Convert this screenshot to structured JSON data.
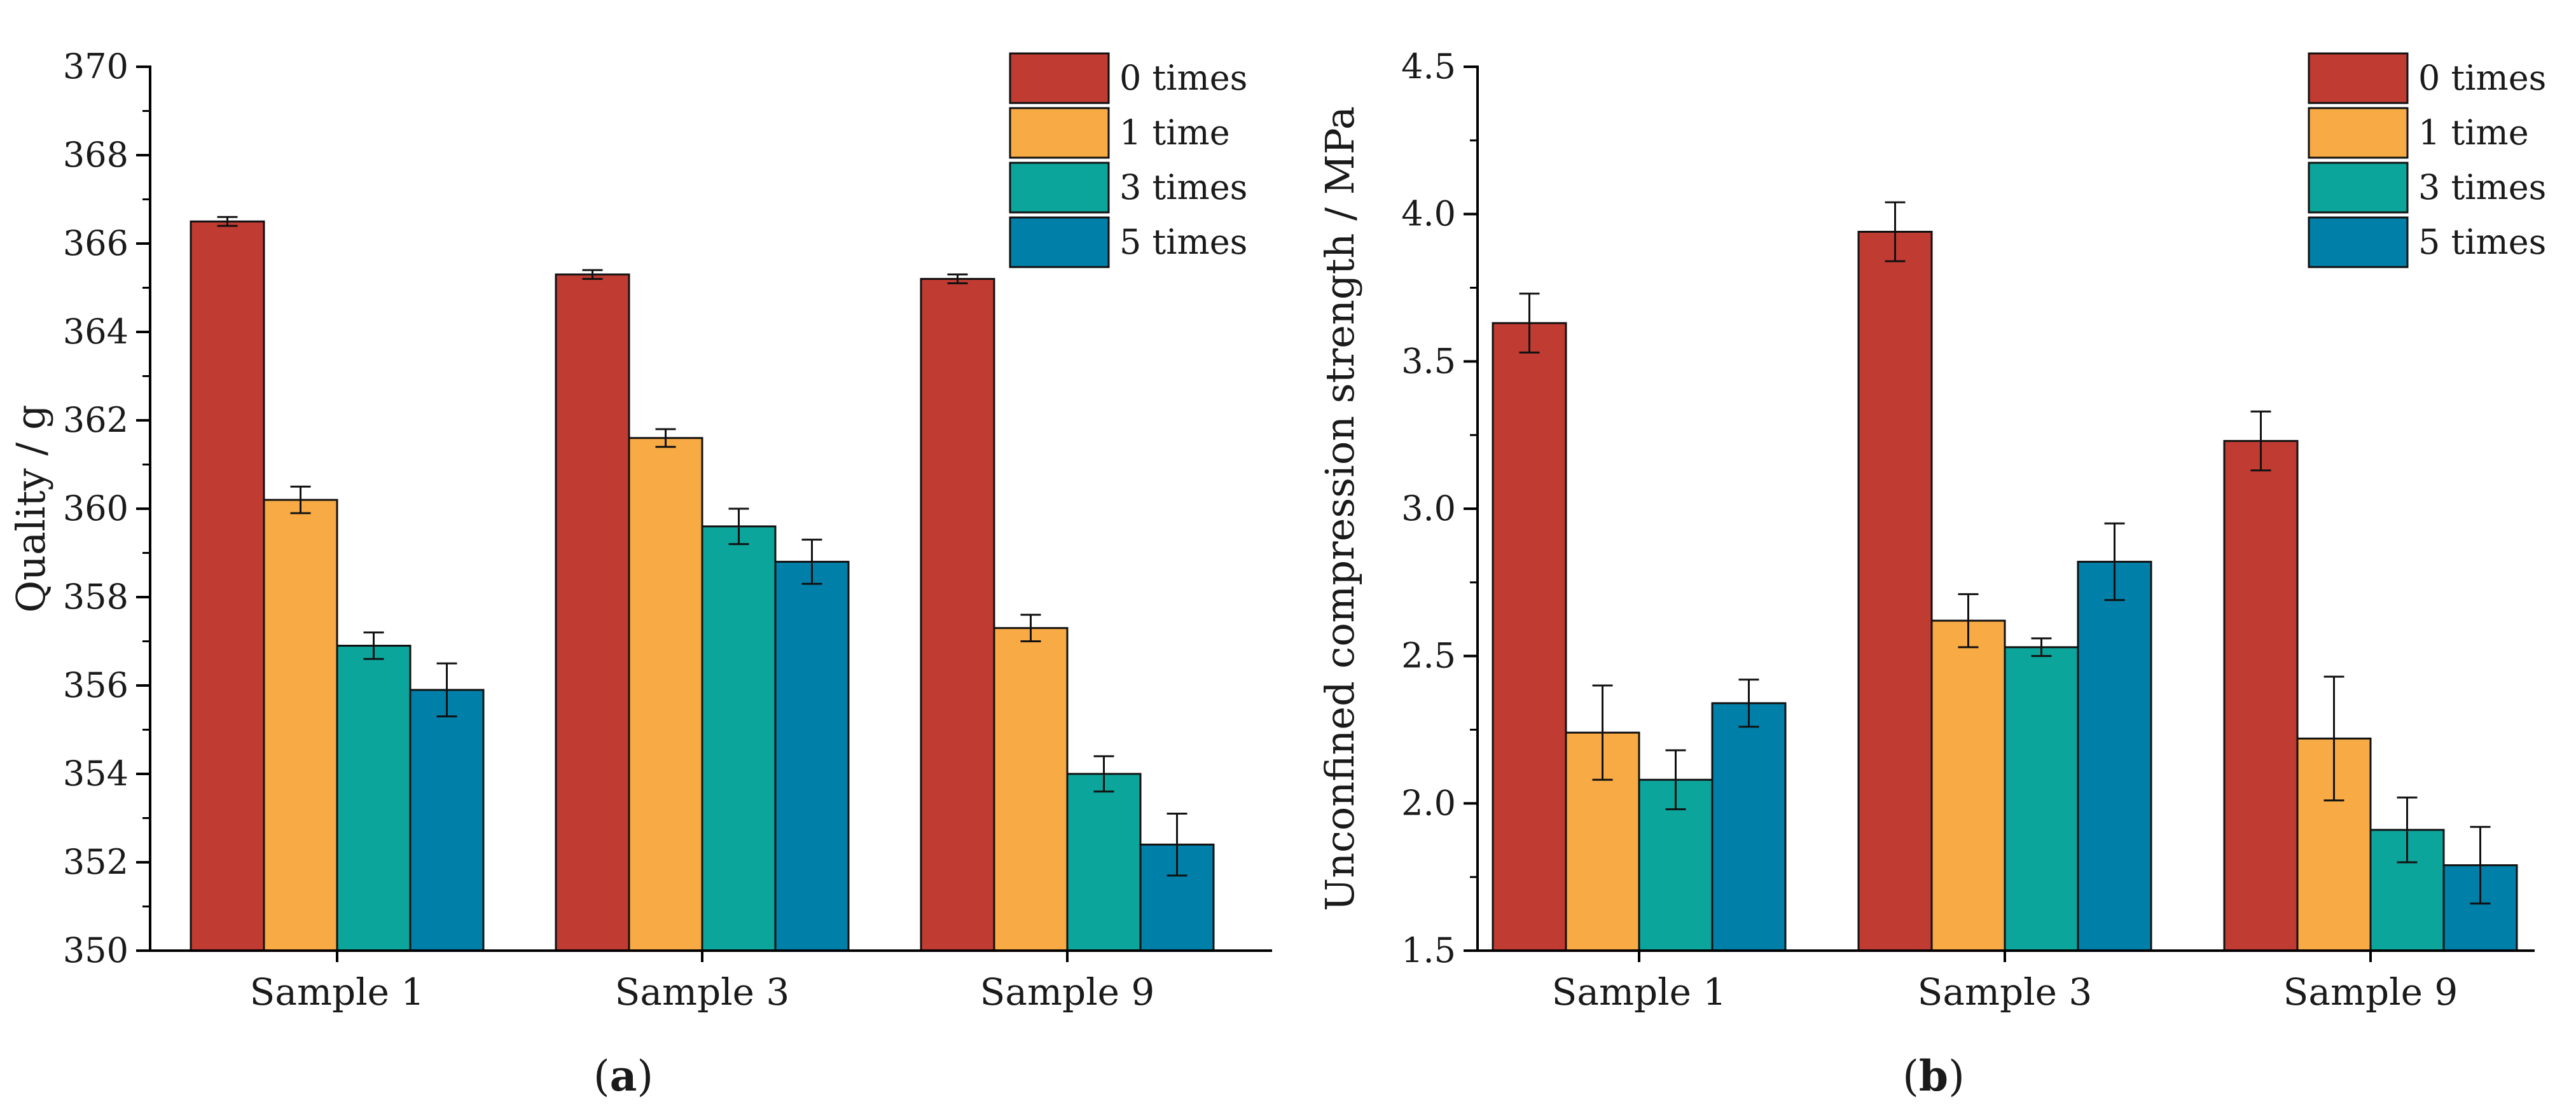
{
  "colors": {
    "0 times": "#c03b32",
    "1 time": "#f8aa44",
    "3 times": "#0ca59c",
    "5 times": "#0080a8",
    "axis": "#000000"
  },
  "chart_data": [
    {
      "type": "bar",
      "panel_label": "a",
      "categories": [
        "Sample 1",
        "Sample 3",
        "Sample 9"
      ],
      "ylabel": "Quality / g",
      "ylim": [
        350,
        370
      ],
      "yticks": [
        "350",
        "352",
        "354",
        "356",
        "358",
        "360",
        "362",
        "364",
        "366",
        "368",
        "370"
      ],
      "legend_position": "top-right",
      "grid": false,
      "series": [
        {
          "name": "0 times",
          "values": [
            366.5,
            365.3,
            365.2
          ],
          "errors": [
            0.1,
            0.1,
            0.1
          ]
        },
        {
          "name": "1 time",
          "values": [
            360.2,
            361.6,
            357.3
          ],
          "errors": [
            0.3,
            0.2,
            0.3
          ]
        },
        {
          "name": "3 times",
          "values": [
            356.9,
            359.6,
            354.0
          ],
          "errors": [
            0.3,
            0.4,
            0.4
          ]
        },
        {
          "name": "5 times",
          "values": [
            355.9,
            358.8,
            352.4
          ],
          "errors": [
            0.6,
            0.5,
            0.7
          ]
        }
      ]
    },
    {
      "type": "bar",
      "panel_label": "b",
      "categories": [
        "Sample 1",
        "Sample 3",
        "Sample 9"
      ],
      "ylabel": "Unconfined compression strength / MPa",
      "ylim": [
        1.5,
        4.5
      ],
      "yticks": [
        "1.5",
        "2.0",
        "2.5",
        "3.0",
        "3.5",
        "4.0",
        "4.5"
      ],
      "legend_position": "top-right",
      "grid": false,
      "series": [
        {
          "name": "0 times",
          "values": [
            3.63,
            3.94,
            3.23
          ],
          "errors": [
            0.1,
            0.1,
            0.1
          ]
        },
        {
          "name": "1 time",
          "values": [
            2.24,
            2.62,
            2.22
          ],
          "errors": [
            0.16,
            0.09,
            0.21
          ]
        },
        {
          "name": "3 times",
          "values": [
            2.08,
            2.53,
            1.91
          ],
          "errors": [
            0.1,
            0.03,
            0.11
          ]
        },
        {
          "name": "5 times",
          "values": [
            2.34,
            2.82,
            1.79
          ],
          "errors": [
            0.08,
            0.13,
            0.13
          ]
        }
      ]
    }
  ]
}
